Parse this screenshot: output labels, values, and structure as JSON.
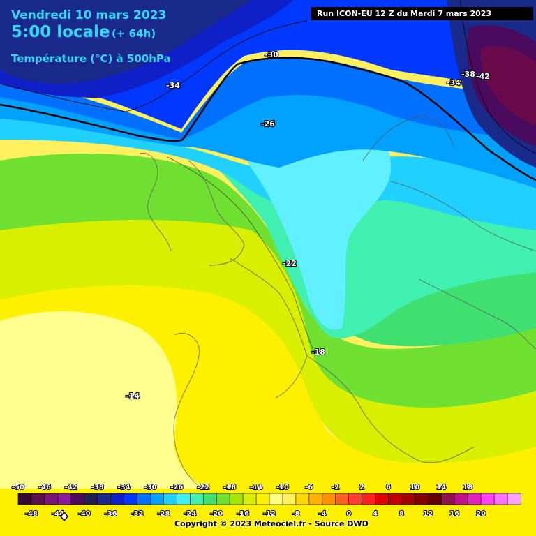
{
  "header": {
    "date": "Vendredi 10 mars 2023",
    "time": "5:00 locale",
    "offset": "(+ 64h)",
    "parameter": "Température (°C) à 500hPa"
  },
  "run_info": "Run ICON-EU 12 Z du Mardi 7 mars 2023",
  "contour_labels": [
    {
      "id": "label-minus30",
      "text": "-30"
    },
    {
      "id": "label-minus34-west",
      "text": "-34"
    },
    {
      "id": "label-minus34-east",
      "text": "-34"
    },
    {
      "id": "label-minus38",
      "text": "-38"
    },
    {
      "id": "label-minus42",
      "text": "-42"
    },
    {
      "id": "label-minus26",
      "text": "-26"
    },
    {
      "id": "label-minus22",
      "text": "-22"
    },
    {
      "id": "label-minus18",
      "text": "-18"
    },
    {
      "id": "label-minus14",
      "text": "-14"
    }
  ],
  "legend": {
    "top_labels": [
      "-50",
      "-46",
      "-42",
      "-38",
      "-34",
      "-30",
      "-26",
      "-22",
      "-18",
      "-14",
      "-10",
      "-6",
      "-2",
      "2",
      "6",
      "10",
      "14",
      "18"
    ],
    "bottom_labels": [
      "-48",
      "-44",
      "-40",
      "-36",
      "-32",
      "-28",
      "-24",
      "-20",
      "-16",
      "-12",
      "-8",
      "-4",
      "0",
      "4",
      "8",
      "12",
      "16",
      "20"
    ],
    "colors": [
      "#3a0a2e",
      "#5a0f4e",
      "#7a157a",
      "#8a1a9a",
      "#4a0a5e",
      "#20204e",
      "#1a2a8a",
      "#1020c8",
      "#0038ff",
      "#0070ff",
      "#00a0ff",
      "#20d0ff",
      "#40f0f0",
      "#40f0b0",
      "#40e070",
      "#70e030",
      "#a0e800",
      "#d8f000",
      "#fff000",
      "#ffff80",
      "#fff060",
      "#ffd800",
      "#ffb000",
      "#ff9000",
      "#ff6020",
      "#ff4030",
      "#ff2020",
      "#e00000",
      "#c00000",
      "#a00000",
      "#800000",
      "#600000",
      "#901050",
      "#c01090",
      "#e020c0",
      "#ff40ff",
      "#ff70ff",
      "#ffa0ff"
    ]
  },
  "colors": {
    "header_text": "#33d6ff",
    "contour": "#000000"
  },
  "copyright": "Copyright © 2023 Meteociel.fr - Source DWD"
}
